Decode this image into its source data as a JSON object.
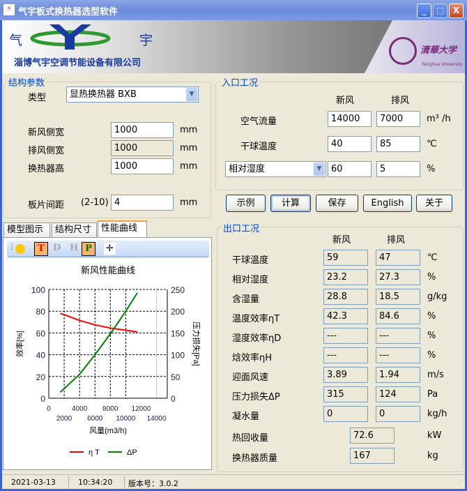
{
  "window": {
    "title": "气宇板式换热器选型软件",
    "minimize": "_",
    "maximize": "□",
    "close": "X"
  },
  "banner": {
    "logo_left": "气",
    "logo_right": "宇",
    "company": "淄博气宇空调节能设备有限公司",
    "university": "清華大学",
    "university_en": "Tsinghua University"
  },
  "structure": {
    "title": "结构参数",
    "type_label": "类型",
    "type_value": "显热换热器 BXB",
    "fields": [
      {
        "label": "新风侧宽",
        "value": "1000",
        "unit": "mm",
        "readonly": false
      },
      {
        "label": "排风侧宽",
        "value": "1000",
        "unit": "mm",
        "readonly": true
      },
      {
        "label": "换热器高",
        "value": "1000",
        "unit": "mm",
        "readonly": false
      }
    ],
    "spacing": {
      "label": "板片间距",
      "range": "(2-10)",
      "value": "4",
      "unit": "mm"
    }
  },
  "tabs": [
    {
      "label": "模型图示"
    },
    {
      "label": "结构尺寸"
    },
    {
      "label": "性能曲线",
      "active": true
    }
  ],
  "toolbar": {
    "t": "T",
    "d": "D",
    "h": "H",
    "p": "P"
  },
  "inlet": {
    "title": "入口工况",
    "col1": "新风",
    "col2": "排风",
    "rows": [
      {
        "label": "空气流量",
        "v1": "14000",
        "v2": "7000",
        "unit": "m³ /h"
      },
      {
        "label": "干球温度",
        "v1": "40",
        "v2": "85",
        "unit": "℃"
      }
    ],
    "humidity": {
      "select": "相对湿度",
      "v1": "60",
      "v2": "5",
      "unit": "%"
    }
  },
  "buttons": {
    "example": "示例",
    "calc": "计算",
    "save": "保存",
    "english": "English",
    "about": "关于"
  },
  "outlet": {
    "title": "出口工况",
    "col1": "新风",
    "col2": "排风",
    "rows": [
      {
        "label": "干球温度",
        "v1": "59",
        "v2": "47",
        "unit": "℃"
      },
      {
        "label": "相对湿度",
        "v1": "23.2",
        "v2": "27.3",
        "unit": "%"
      },
      {
        "label": "含湿量",
        "v1": "28.8",
        "v2": "18.5",
        "unit": "g/kg"
      },
      {
        "label": "温度效率ηT",
        "v1": "42.3",
        "v2": "84.6",
        "unit": "%"
      },
      {
        "label": "湿度效率ηD",
        "v1": "---",
        "v2": "---",
        "unit": "%"
      },
      {
        "label": "焓效率ηH",
        "v1": "---",
        "v2": "---",
        "unit": "%"
      },
      {
        "label": "迎面风速",
        "v1": "3.89",
        "v2": "1.94",
        "unit": "m/s"
      },
      {
        "label": "压力损失ΔP",
        "v1": "315",
        "v2": "124",
        "unit": "Pa"
      },
      {
        "label": "凝水量",
        "v1": "0",
        "v2": "0",
        "unit": "kg/h"
      }
    ],
    "single": [
      {
        "label": "热回收量",
        "value": "72.6",
        "unit": "kW"
      },
      {
        "label": "换热器质量",
        "value": "167",
        "unit": "kg"
      }
    ]
  },
  "status": {
    "date": "2021-03-13",
    "time": "10:34:20",
    "version": "版本号：3.0.2"
  },
  "chart_data": {
    "type": "line",
    "title": "新风性能曲线",
    "xlabel": "风量(m3/h)",
    "ylabel": "效率[%]",
    "y2label": "压力损失[Pa]",
    "xlim": [
      0,
      15400
    ],
    "ylim": [
      0,
      100
    ],
    "y2lim": [
      0,
      250
    ],
    "grid": true,
    "xticks": [
      0,
      2000,
      4000,
      6000,
      8000,
      10000,
      12000,
      14000
    ],
    "yticks": [
      0,
      20,
      40,
      60,
      80,
      100
    ],
    "y2ticks": [
      0,
      50,
      100,
      150,
      200,
      250
    ],
    "marker_x": 14000,
    "legend": "bottom",
    "series": [
      {
        "name": "η T",
        "axis": "left",
        "color": "#ff0000",
        "x": [
          1500,
          2500,
          4000,
          6000,
          8000,
          10000,
          11500
        ],
        "y": [
          78,
          75.5,
          71.5,
          67.5,
          64.5,
          62.5,
          61
        ]
      },
      {
        "name": "ΔP",
        "axis": "right",
        "color": "#008000",
        "x": [
          1500,
          4000,
          6000,
          8000,
          10000,
          11500
        ],
        "y": [
          14,
          55,
          100,
          148,
          200,
          242
        ]
      }
    ]
  }
}
